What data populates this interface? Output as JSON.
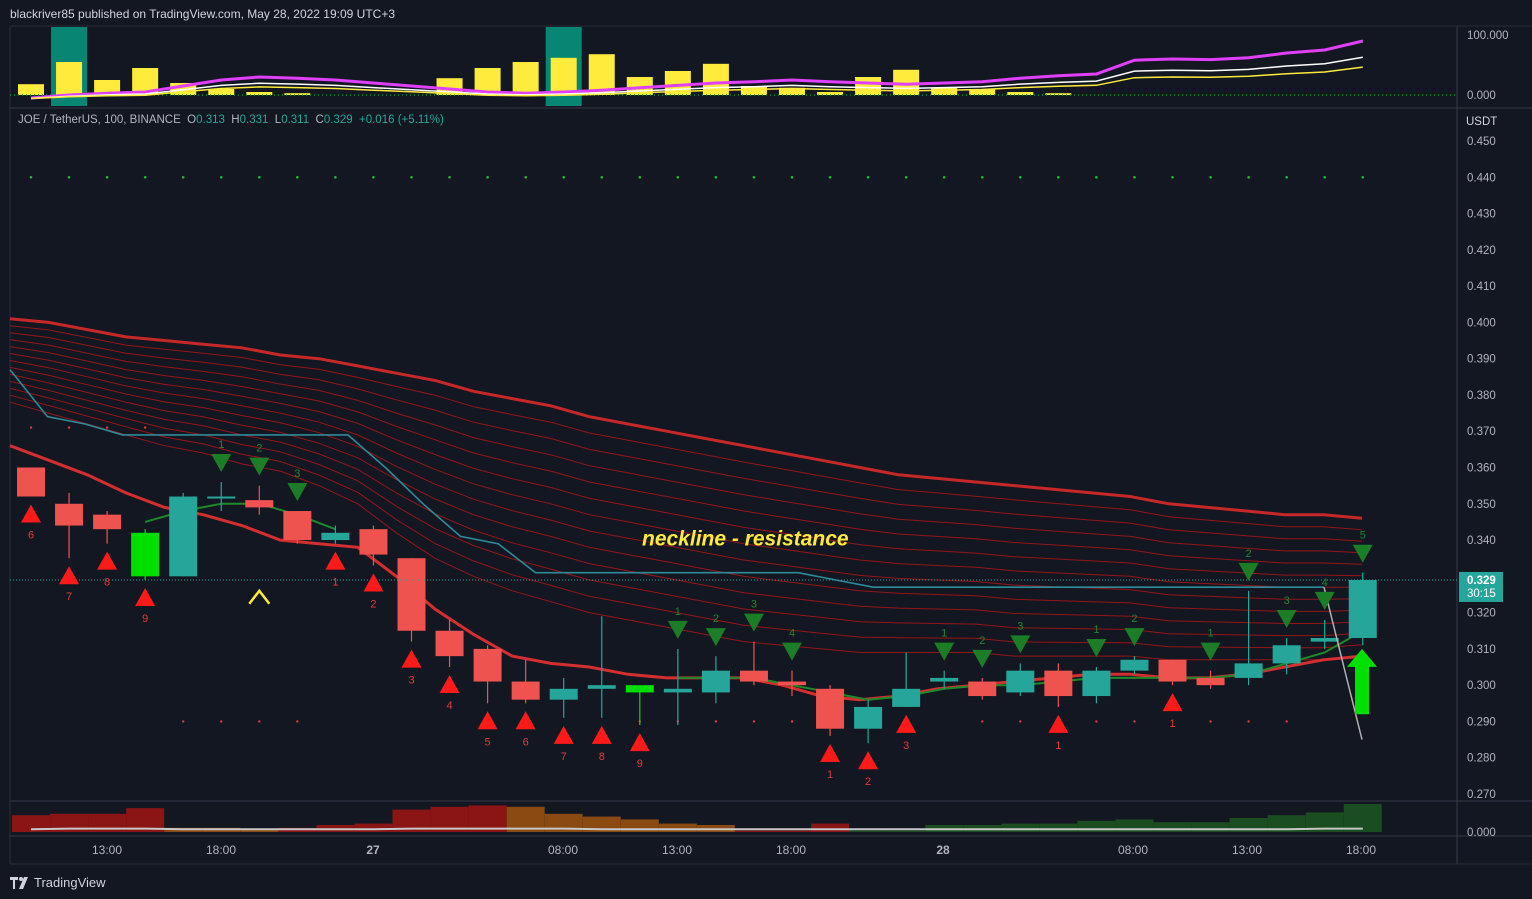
{
  "header": {
    "publisher_text": "blackriver85 published on TradingView.com, May 28, 2022 19:09 UTC+3"
  },
  "footer": {
    "brand": "TradingView"
  },
  "legend": {
    "symbol": "JOE / TetherUS, 100, BINANCE",
    "open_label": "O",
    "open": "0.313",
    "high_label": "H",
    "high": "0.331",
    "low_label": "L",
    "low": "0.311",
    "close_label": "C",
    "close": "0.329",
    "change": "+0.016 (+5.11%)"
  },
  "colors": {
    "background": "#131722",
    "up": "#26a69a",
    "down": "#ef5350",
    "bright_up": "#00e000",
    "ribbon": "#b71c1c",
    "ribbon_thick": "#d50000",
    "teal_line": "#2e8b9a",
    "green_ma": "#1b8a2a",
    "magenta": "#e040fb",
    "yellow": "#ffeb3b"
  },
  "chart_data": {
    "type": "candlestick",
    "price_axis": {
      "unit_label": "USDT",
      "ylim": [
        0.265,
        0.452
      ],
      "ticks": [
        "0.450",
        "0.440",
        "0.430",
        "0.420",
        "0.410",
        "0.400",
        "0.390",
        "0.380",
        "0.370",
        "0.360",
        "0.350",
        "0.340",
        "0.330",
        "0.320",
        "0.310",
        "0.300",
        "0.290",
        "0.280",
        "0.270"
      ]
    },
    "current_price": "0.329",
    "countdown": "30:15",
    "time_axis": [
      "13:00",
      "18:00",
      "27",
      "08:00",
      "13:00",
      "18:00",
      "28",
      "08:00",
      "13:00",
      "18:00"
    ],
    "candles": [
      {
        "o": 0.36,
        "h": 0.36,
        "l": 0.352,
        "c": 0.352
      },
      {
        "o": 0.35,
        "h": 0.353,
        "l": 0.335,
        "c": 0.344
      },
      {
        "o": 0.347,
        "h": 0.348,
        "l": 0.339,
        "c": 0.343
      },
      {
        "o": 0.342,
        "h": 0.343,
        "l": 0.329,
        "c": 0.33,
        "bright": true
      },
      {
        "o": 0.33,
        "h": 0.353,
        "l": 0.33,
        "c": 0.352
      },
      {
        "o": 0.352,
        "h": 0.356,
        "l": 0.348,
        "c": 0.352
      },
      {
        "o": 0.351,
        "h": 0.355,
        "l": 0.347,
        "c": 0.349
      },
      {
        "o": 0.348,
        "h": 0.348,
        "l": 0.339,
        "c": 0.34
      },
      {
        "o": 0.34,
        "h": 0.344,
        "l": 0.339,
        "c": 0.342
      },
      {
        "o": 0.343,
        "h": 0.344,
        "l": 0.333,
        "c": 0.336
      },
      {
        "o": 0.335,
        "h": 0.335,
        "l": 0.312,
        "c": 0.315
      },
      {
        "o": 0.315,
        "h": 0.318,
        "l": 0.305,
        "c": 0.308
      },
      {
        "o": 0.31,
        "h": 0.311,
        "l": 0.295,
        "c": 0.301
      },
      {
        "o": 0.301,
        "h": 0.307,
        "l": 0.295,
        "c": 0.296
      },
      {
        "o": 0.296,
        "h": 0.302,
        "l": 0.291,
        "c": 0.299
      },
      {
        "o": 0.299,
        "h": 0.319,
        "l": 0.291,
        "c": 0.3
      },
      {
        "o": 0.298,
        "h": 0.3,
        "l": 0.289,
        "c": 0.3,
        "bright": true
      },
      {
        "o": 0.298,
        "h": 0.31,
        "l": 0.289,
        "c": 0.299
      },
      {
        "o": 0.298,
        "h": 0.308,
        "l": 0.295,
        "c": 0.304
      },
      {
        "o": 0.304,
        "h": 0.312,
        "l": 0.3,
        "c": 0.301
      },
      {
        "o": 0.301,
        "h": 0.304,
        "l": 0.297,
        "c": 0.3
      },
      {
        "o": 0.299,
        "h": 0.3,
        "l": 0.286,
        "c": 0.288
      },
      {
        "o": 0.288,
        "h": 0.296,
        "l": 0.284,
        "c": 0.294
      },
      {
        "o": 0.294,
        "h": 0.309,
        "l": 0.294,
        "c": 0.299
      },
      {
        "o": 0.301,
        "h": 0.304,
        "l": 0.299,
        "c": 0.302
      },
      {
        "o": 0.301,
        "h": 0.302,
        "l": 0.296,
        "c": 0.297
      },
      {
        "o": 0.298,
        "h": 0.306,
        "l": 0.297,
        "c": 0.304
      },
      {
        "o": 0.304,
        "h": 0.306,
        "l": 0.294,
        "c": 0.297
      },
      {
        "o": 0.297,
        "h": 0.305,
        "l": 0.295,
        "c": 0.304
      },
      {
        "o": 0.304,
        "h": 0.308,
        "l": 0.303,
        "c": 0.307
      },
      {
        "o": 0.307,
        "h": 0.307,
        "l": 0.3,
        "c": 0.301
      },
      {
        "o": 0.302,
        "h": 0.304,
        "l": 0.299,
        "c": 0.3
      },
      {
        "o": 0.302,
        "h": 0.326,
        "l": 0.3,
        "c": 0.306
      },
      {
        "o": 0.306,
        "h": 0.313,
        "l": 0.303,
        "c": 0.311
      },
      {
        "o": 0.312,
        "h": 0.318,
        "l": 0.31,
        "c": 0.313
      },
      {
        "o": 0.313,
        "h": 0.331,
        "l": 0.311,
        "c": 0.329
      }
    ],
    "moving_averages": {
      "teal_stepped": [
        0.387,
        0.374,
        0.372,
        0.369,
        0.369,
        0.369,
        0.369,
        0.369,
        0.369,
        0.369,
        0.36,
        0.35,
        0.341,
        0.339,
        0.331,
        0.331,
        0.331,
        0.331,
        0.331,
        0.331,
        0.331,
        0.331,
        0.329,
        0.327,
        0.327,
        0.327,
        0.327,
        0.327,
        0.327,
        0.327,
        0.327,
        0.327,
        0.327,
        0.327,
        0.327,
        0.327
      ],
      "red_fast": [
        0.366,
        0.362,
        0.358,
        0.353,
        0.349,
        0.347,
        0.344,
        0.34,
        0.339,
        0.338,
        0.33,
        0.321,
        0.314,
        0.308,
        0.306,
        0.305,
        0.303,
        0.302,
        0.302,
        0.302,
        0.3,
        0.297,
        0.296,
        0.297,
        0.299,
        0.3,
        0.301,
        0.302,
        0.303,
        0.303,
        0.302,
        0.302,
        0.303,
        0.305,
        0.307,
        0.308
      ],
      "green_ma": [
        null,
        null,
        null,
        0.345,
        0.348,
        0.35,
        0.35,
        0.347,
        0.343,
        null,
        null,
        null,
        null,
        null,
        null,
        null,
        null,
        0.302,
        0.302,
        0.302,
        0.3,
        0.298,
        0.296,
        0.297,
        0.299,
        0.3,
        0.3,
        0.301,
        0.302,
        0.302,
        0.302,
        0.302,
        0.303,
        0.306,
        0.309,
        0.315
      ],
      "ribbon_top": [
        0.401,
        0.4,
        0.398,
        0.396,
        0.395,
        0.394,
        0.393,
        0.391,
        0.39,
        0.388,
        0.386,
        0.384,
        0.381,
        0.379,
        0.377,
        0.374,
        0.372,
        0.37,
        0.368,
        0.366,
        0.364,
        0.362,
        0.36,
        0.358,
        0.357,
        0.356,
        0.355,
        0.354,
        0.353,
        0.352,
        0.35,
        0.349,
        0.348,
        0.347,
        0.347,
        0.346
      ],
      "ribbon_bottom": [
        0.378,
        0.375,
        0.372,
        0.369,
        0.366,
        0.364,
        0.361,
        0.359,
        0.355,
        0.35,
        0.342,
        0.335,
        0.33,
        0.326,
        0.323,
        0.32,
        0.318,
        0.316,
        0.314,
        0.312,
        0.311,
        0.31,
        0.309,
        0.309,
        0.309,
        0.309,
        0.308,
        0.308,
        0.308,
        0.308,
        0.307,
        0.307,
        0.307,
        0.307,
        0.307,
        0.308
      ]
    },
    "signals": {
      "sell_arrows": [
        {
          "bar": 5,
          "label": "1"
        },
        {
          "bar": 6,
          "label": "2"
        },
        {
          "bar": 7,
          "label": "3"
        },
        {
          "bar": 17,
          "label": "1"
        },
        {
          "bar": 18,
          "label": "2"
        },
        {
          "bar": 19,
          "label": "3"
        },
        {
          "bar": 20,
          "label": "4"
        },
        {
          "bar": 24,
          "label": "1"
        },
        {
          "bar": 25,
          "label": "2"
        },
        {
          "bar": 26,
          "label": "3"
        },
        {
          "bar": 28,
          "label": "1"
        },
        {
          "bar": 29,
          "label": "2"
        },
        {
          "bar": 31,
          "label": "1"
        },
        {
          "bar": 32,
          "label": "2"
        },
        {
          "bar": 33,
          "label": "3"
        },
        {
          "bar": 34,
          "label": "4"
        },
        {
          "bar": 35,
          "label": "5"
        }
      ],
      "buy_arrows": [
        {
          "bar": 0,
          "label": "6"
        },
        {
          "bar": 1,
          "label": "7"
        },
        {
          "bar": 2,
          "label": "8"
        },
        {
          "bar": 3,
          "label": "9"
        },
        {
          "bar": 8,
          "label": "1"
        },
        {
          "bar": 9,
          "label": "2"
        },
        {
          "bar": 10,
          "label": "3"
        },
        {
          "bar": 11,
          "label": "4"
        },
        {
          "bar": 12,
          "label": "5"
        },
        {
          "bar": 13,
          "label": "6"
        },
        {
          "bar": 14,
          "label": "7"
        },
        {
          "bar": 15,
          "label": "8"
        },
        {
          "bar": 16,
          "label": "9"
        },
        {
          "bar": 21,
          "label": "1"
        },
        {
          "bar": 22,
          "label": "2"
        },
        {
          "bar": 23,
          "label": "3"
        },
        {
          "bar": 27,
          "label": "1"
        },
        {
          "bar": 30,
          "label": "1"
        }
      ]
    },
    "annotation": "neckline - resistance",
    "top_indicator": {
      "ticks": [
        "100.000",
        "0.000"
      ],
      "bars": [
        18,
        55,
        25,
        45,
        20,
        10,
        5,
        3,
        0,
        0,
        0,
        28,
        45,
        55,
        62,
        68,
        30,
        40,
        52,
        15,
        12,
        5,
        30,
        42,
        12,
        10,
        5,
        3,
        0,
        0,
        0,
        0,
        0,
        0,
        0,
        0
      ],
      "green_bars": [
        1,
        14
      ],
      "magenta_line": [
        -5,
        0,
        3,
        5,
        15,
        25,
        30,
        28,
        25,
        20,
        15,
        10,
        5,
        3,
        5,
        8,
        12,
        16,
        20,
        22,
        25,
        22,
        20,
        18,
        20,
        22,
        28,
        32,
        35,
        58,
        60,
        59,
        62,
        70,
        75,
        90
      ]
    },
    "bottom_indicator": {
      "ticks": [
        "0.000"
      ],
      "bars": [
        0.6,
        0.65,
        0.65,
        0.85,
        0.15,
        0.15,
        0.1,
        0.15,
        0.25,
        0.3,
        0.8,
        0.9,
        0.95,
        0.9,
        0.65,
        0.55,
        0.45,
        0.3,
        0.25,
        0.05,
        0.05,
        0.3,
        0.05,
        0.05,
        0.25,
        0.25,
        0.3,
        0.3,
        0.4,
        0.45,
        0.35,
        0.35,
        0.5,
        0.6,
        0.7,
        1.0
      ],
      "bar_colors": [
        "dred",
        "dred",
        "dred",
        "dred",
        "brown",
        "brown",
        "brown",
        "dred",
        "dred",
        "dred",
        "dred",
        "dred",
        "dred",
        "brown",
        "brown",
        "brown",
        "brown",
        "brown",
        "brown",
        "dred",
        "dred",
        "dred",
        "dgreen",
        "dgreen",
        "dgreen",
        "dgreen",
        "dgreen",
        "dgreen",
        "dgreen",
        "dgreen",
        "dgreen",
        "dgreen",
        "dgreen",
        "dgreen",
        "dgreen",
        "dgreen"
      ]
    }
  }
}
